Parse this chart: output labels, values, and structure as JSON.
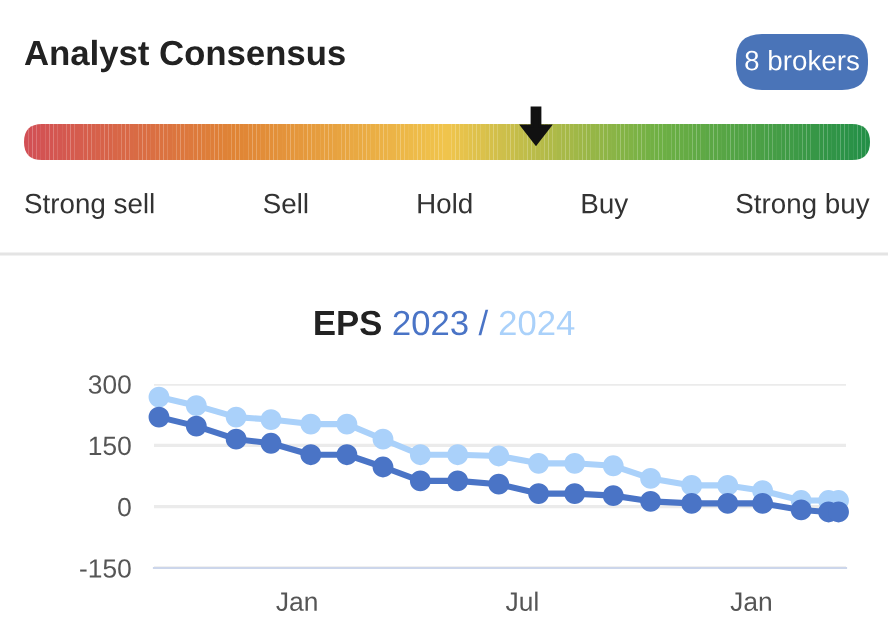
{
  "chart_data": [
    {
      "type": "other",
      "title": "Analyst Consensus",
      "annotations": [
        "8 brokers"
      ],
      "categories": [
        "Strong sell",
        "Sell",
        "Hold",
        "Buy",
        "Strong buy"
      ],
      "colors": [
        "#d24f55",
        "#e08535",
        "#f0c44c",
        "#6fb044",
        "#248f47"
      ]
    },
    {
      "type": "line",
      "title": "EPS",
      "annotations": [
        "/"
      ],
      "marker": "circle",
      "grid": "y",
      "legend": false,
      "x": [
        "2022-09-12",
        "2022-10-12",
        "2022-11-13",
        "2022-12-11",
        "2023-01-12",
        "2023-02-10",
        "2023-03-11",
        "2023-04-10",
        "2023-05-10",
        "2023-06-12",
        "2023-07-14",
        "2023-08-12",
        "2023-09-12",
        "2023-10-12",
        "2023-11-14",
        "2023-12-13",
        "2024-01-10",
        "2024-02-10",
        "2024-03-03",
        "2024-03-11"
      ],
      "series": [
        {
          "name": "2024",
          "color": "#aad1fa",
          "values": [
            268,
            247,
            219,
            213,
            202,
            202,
            165,
            127,
            127,
            124,
            106,
            106,
            100,
            69,
            52,
            52,
            39,
            15,
            15,
            15
          ]
        },
        {
          "name": "2023",
          "color": "#4a74c6",
          "values": [
            219,
            197,
            165,
            155,
            127,
            127,
            97,
            63,
            63,
            55,
            32,
            32,
            27,
            13,
            8,
            8,
            8,
            -8,
            -13,
            -13
          ]
        }
      ],
      "xlim": [
        "2022-09-08",
        "2024-03-17"
      ],
      "xticks": [
        {
          "value": "2023-01-01",
          "label": "Jan"
        },
        {
          "value": "2023-07-01",
          "label": "Jul"
        },
        {
          "value": "2024-01-01",
          "label": "Jan"
        }
      ],
      "ylim": [
        -150,
        300
      ],
      "yticks": [
        -150,
        0,
        150,
        300
      ]
    }
  ]
}
